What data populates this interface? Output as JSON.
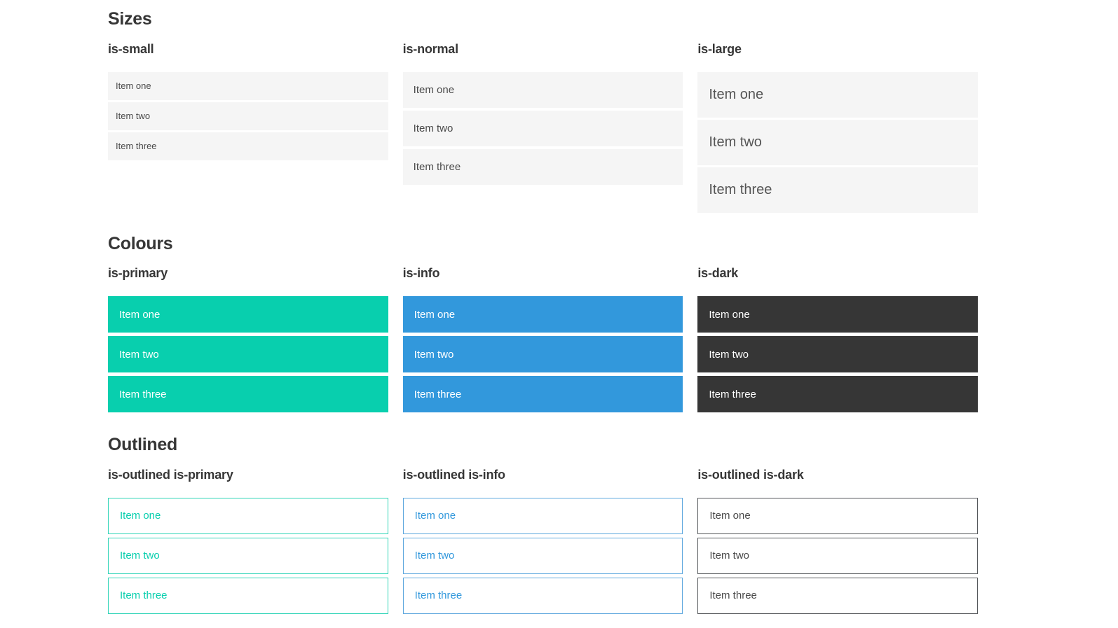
{
  "colors": {
    "primary": "#08cfae",
    "info": "#3298dc",
    "dark": "#363636",
    "light": "#f5f5f5",
    "text": "#4a4a4a",
    "heading": "#363636",
    "white": "#ffffff",
    "outlined_primary_border": "#2fd4b7",
    "outlined_info_border": "#5fa8de",
    "outlined_dark_border": "#54575a"
  },
  "sections": [
    {
      "title": "Sizes",
      "groups": [
        {
          "label": "is-small",
          "items": [
            "Item one",
            "Item two",
            "Item three"
          ]
        },
        {
          "label": "is-normal",
          "items": [
            "Item one",
            "Item two",
            "Item three"
          ]
        },
        {
          "label": "is-large",
          "items": [
            "Item one",
            "Item two",
            "Item three"
          ]
        }
      ]
    },
    {
      "title": "Colours",
      "groups": [
        {
          "label": "is-primary",
          "items": [
            "Item one",
            "Item two",
            "Item three"
          ]
        },
        {
          "label": "is-info",
          "items": [
            "Item one",
            "Item two",
            "Item three"
          ]
        },
        {
          "label": "is-dark",
          "items": [
            "Item one",
            "Item two",
            "Item three"
          ]
        }
      ]
    },
    {
      "title": "Outlined",
      "groups": [
        {
          "label": "is-outlined is-primary",
          "items": [
            "Item one",
            "Item two",
            "Item three"
          ]
        },
        {
          "label": "is-outlined is-info",
          "items": [
            "Item one",
            "Item two",
            "Item three"
          ]
        },
        {
          "label": "is-outlined is-dark",
          "items": [
            "Item one",
            "Item two",
            "Item three"
          ]
        }
      ]
    }
  ]
}
